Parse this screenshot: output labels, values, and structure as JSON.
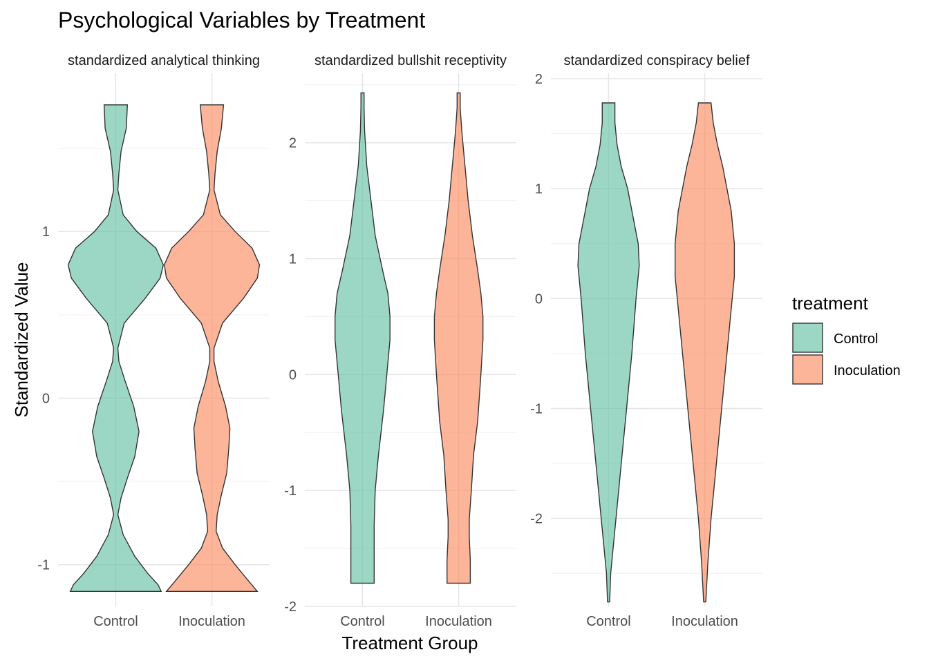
{
  "title": "Psychological Variables by Treatment",
  "chart_data": {
    "type": "violin",
    "title": "Psychological Variables by Treatment",
    "xlabel": "Treatment Group",
    "ylabel": "Standardized Value",
    "categories": [
      "Control",
      "Inoculation"
    ],
    "legend": {
      "title": "treatment",
      "position": "right",
      "entries": [
        {
          "name": "Control",
          "color": "#66C2A5"
        },
        {
          "name": "Inoculation",
          "color": "#FC8D62"
        }
      ]
    },
    "grid": true,
    "facets": [
      {
        "label": "standardized analytical thinking",
        "ylim": [
          -1.25,
          1.95
        ],
        "yticks": [
          -1,
          0,
          1
        ],
        "series": [
          {
            "name": "Control",
            "y_range": [
              -1.16,
              1.76
            ],
            "profile": [
              [
                -1.16,
                0.43
              ],
              [
                -1.12,
                0.4
              ],
              [
                -1.05,
                0.3
              ],
              [
                -0.95,
                0.18
              ],
              [
                -0.82,
                0.07
              ],
              [
                -0.7,
                0.02
              ],
              [
                -0.6,
                0.05
              ],
              [
                -0.48,
                0.11
              ],
              [
                -0.35,
                0.18
              ],
              [
                -0.2,
                0.22
              ],
              [
                -0.05,
                0.17
              ],
              [
                0.1,
                0.09
              ],
              [
                0.22,
                0.03
              ],
              [
                0.3,
                0.02
              ],
              [
                0.45,
                0.08
              ],
              [
                0.6,
                0.28
              ],
              [
                0.72,
                0.42
              ],
              [
                0.8,
                0.45
              ],
              [
                0.9,
                0.38
              ],
              [
                1.0,
                0.2
              ],
              [
                1.1,
                0.07
              ],
              [
                1.25,
                0.02
              ],
              [
                1.35,
                0.03
              ],
              [
                1.48,
                0.05
              ],
              [
                1.62,
                0.1
              ],
              [
                1.76,
                0.11
              ]
            ]
          },
          {
            "name": "Inoculation",
            "y_range": [
              -1.16,
              1.76
            ],
            "profile": [
              [
                -1.16,
                0.43
              ],
              [
                -1.1,
                0.35
              ],
              [
                -1.0,
                0.22
              ],
              [
                -0.9,
                0.1
              ],
              [
                -0.8,
                0.04
              ],
              [
                -0.7,
                0.05
              ],
              [
                -0.58,
                0.09
              ],
              [
                -0.45,
                0.14
              ],
              [
                -0.3,
                0.16
              ],
              [
                -0.18,
                0.17
              ],
              [
                -0.05,
                0.13
              ],
              [
                0.1,
                0.06
              ],
              [
                0.22,
                0.02
              ],
              [
                0.3,
                0.02
              ],
              [
                0.45,
                0.1
              ],
              [
                0.6,
                0.3
              ],
              [
                0.72,
                0.43
              ],
              [
                0.8,
                0.45
              ],
              [
                0.9,
                0.38
              ],
              [
                1.0,
                0.22
              ],
              [
                1.1,
                0.08
              ],
              [
                1.25,
                0.02
              ],
              [
                1.35,
                0.03
              ],
              [
                1.48,
                0.05
              ],
              [
                1.62,
                0.09
              ],
              [
                1.76,
                0.11
              ]
            ]
          }
        ]
      },
      {
        "label": "standardized bullshit receptivity",
        "ylim": [
          -2.0,
          2.6
        ],
        "yticks": [
          -2,
          -1,
          0,
          1,
          2
        ],
        "series": [
          {
            "name": "Control",
            "y_range": [
              -1.8,
              2.43
            ],
            "profile": [
              [
                -1.8,
                0.11
              ],
              [
                -1.6,
                0.11
              ],
              [
                -1.3,
                0.11
              ],
              [
                -1.0,
                0.12
              ],
              [
                -0.7,
                0.15
              ],
              [
                -0.3,
                0.2
              ],
              [
                0.0,
                0.23
              ],
              [
                0.3,
                0.26
              ],
              [
                0.5,
                0.26
              ],
              [
                0.7,
                0.24
              ],
              [
                0.9,
                0.19
              ],
              [
                1.2,
                0.12
              ],
              [
                1.5,
                0.08
              ],
              [
                1.8,
                0.04
              ],
              [
                2.1,
                0.02
              ],
              [
                2.3,
                0.015
              ],
              [
                2.43,
                0.015
              ]
            ]
          },
          {
            "name": "Inoculation",
            "y_range": [
              -1.8,
              2.43
            ],
            "profile": [
              [
                -1.8,
                0.11
              ],
              [
                -1.6,
                0.11
              ],
              [
                -1.4,
                0.1
              ],
              [
                -1.25,
                0.1
              ],
              [
                -1.0,
                0.12
              ],
              [
                -0.7,
                0.14
              ],
              [
                -0.4,
                0.18
              ],
              [
                0.0,
                0.21
              ],
              [
                0.3,
                0.23
              ],
              [
                0.5,
                0.23
              ],
              [
                0.7,
                0.21
              ],
              [
                0.9,
                0.18
              ],
              [
                1.2,
                0.13
              ],
              [
                1.5,
                0.09
              ],
              [
                1.8,
                0.06
              ],
              [
                2.1,
                0.03
              ],
              [
                2.3,
                0.015
              ],
              [
                2.43,
                0.015
              ]
            ]
          }
        ]
      },
      {
        "label": "standardized conspiracy belief",
        "ylim": [
          -2.8,
          2.05
        ],
        "yticks": [
          -2,
          -1,
          0,
          1,
          2
        ],
        "series": [
          {
            "name": "Control",
            "y_range": [
              -2.76,
              1.78
            ],
            "profile": [
              [
                -2.76,
                0.01
              ],
              [
                -2.5,
                0.02
              ],
              [
                -2.2,
                0.05
              ],
              [
                -1.9,
                0.08
              ],
              [
                -1.5,
                0.12
              ],
              [
                -1.0,
                0.17
              ],
              [
                -0.5,
                0.22
              ],
              [
                0.0,
                0.26
              ],
              [
                0.3,
                0.29
              ],
              [
                0.5,
                0.28
              ],
              [
                0.8,
                0.22
              ],
              [
                1.0,
                0.18
              ],
              [
                1.2,
                0.12
              ],
              [
                1.4,
                0.08
              ],
              [
                1.6,
                0.06
              ],
              [
                1.78,
                0.06
              ]
            ]
          },
          {
            "name": "Inoculation",
            "y_range": [
              -2.76,
              1.78
            ],
            "profile": [
              [
                -2.76,
                0.01
              ],
              [
                -2.4,
                0.03
              ],
              [
                -2.0,
                0.06
              ],
              [
                -1.6,
                0.1
              ],
              [
                -1.2,
                0.14
              ],
              [
                -0.8,
                0.18
              ],
              [
                -0.4,
                0.22
              ],
              [
                0.0,
                0.26
              ],
              [
                0.2,
                0.28
              ],
              [
                0.5,
                0.28
              ],
              [
                0.8,
                0.25
              ],
              [
                1.0,
                0.21
              ],
              [
                1.2,
                0.17
              ],
              [
                1.4,
                0.12
              ],
              [
                1.6,
                0.08
              ],
              [
                1.78,
                0.06
              ]
            ]
          }
        ]
      }
    ]
  }
}
